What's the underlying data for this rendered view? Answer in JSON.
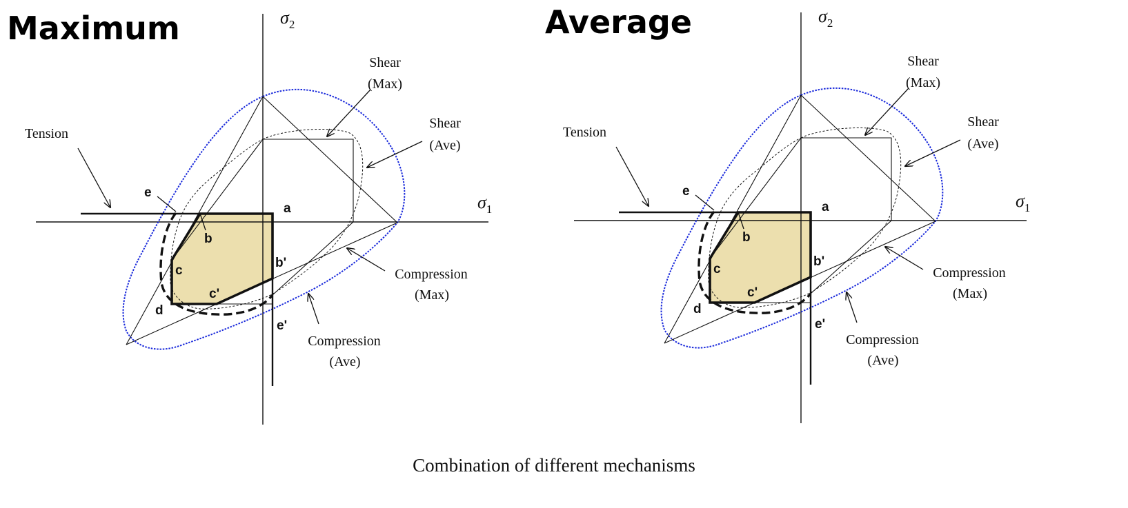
{
  "caption": "Combination of different mechanisms",
  "colors": {
    "accent": "#1a2adb",
    "fill": "#ecdfae",
    "ink": "#111111"
  },
  "panels": [
    {
      "id": "maximum",
      "title": "Maximum",
      "axis_labels": {
        "y_symbol": "σ",
        "y_sub": "2",
        "x_symbol": "σ",
        "x_sub": "1"
      },
      "labels": {
        "tension": "Tension",
        "shear_max_1": "Shear",
        "shear_max_2": "(Max)",
        "shear_ave_1": "Shear",
        "shear_ave_2": "(Ave)",
        "comp_max_1": "Compression",
        "comp_max_2": "(Max)",
        "comp_ave_1": "Compression",
        "comp_ave_2": "(Ave)"
      },
      "points": {
        "a": "a",
        "b": "b",
        "bp": "b'",
        "c": "c",
        "cp": "c'",
        "d": "d",
        "e": "e",
        "ep": "e'"
      }
    },
    {
      "id": "average",
      "title": "Average",
      "axis_labels": {
        "y_symbol": "σ",
        "y_sub": "2",
        "x_symbol": "σ",
        "x_sub": "1"
      },
      "labels": {
        "tension": "Tension",
        "shear_max_1": "Shear",
        "shear_max_2": "(Max)",
        "shear_ave_1": "Shear",
        "shear_ave_2": "(Ave)",
        "comp_max_1": "Compression",
        "comp_max_2": "(Max)",
        "comp_ave_1": "Compression",
        "comp_ave_2": "(Ave)"
      },
      "points": {
        "a": "a",
        "b": "b",
        "bp": "b'",
        "c": "c",
        "cp": "c'",
        "d": "d",
        "e": "e",
        "ep": "e'"
      }
    }
  ]
}
